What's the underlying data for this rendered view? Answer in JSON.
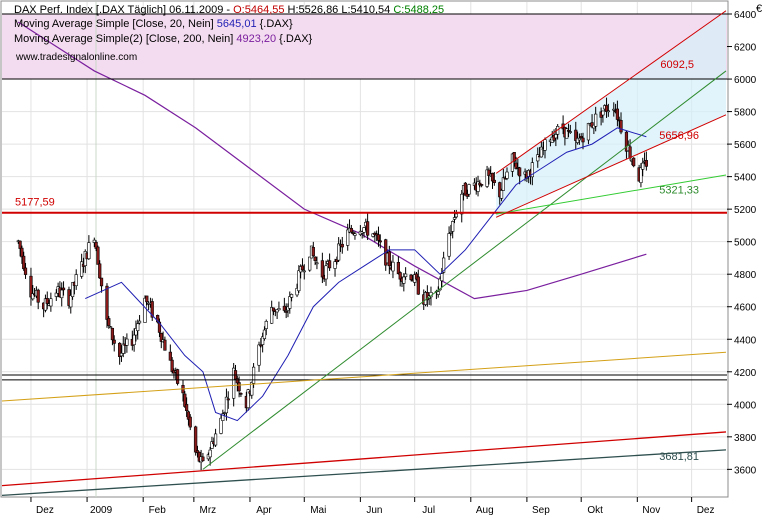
{
  "header": {
    "line1": {
      "prefix": "DAX Perf. Index [.DAX Täglich] 06.11.2009 - ",
      "open": "O:5464,55",
      "hl": " H:5526,86 L:5410,54 ",
      "close": "C:5488,25"
    },
    "line2": {
      "prefix": "Moving Average Simple [Close, 20, Nein] ",
      "value": "5645,01",
      "suffix": " {.DAX}"
    },
    "line3": {
      "prefix": "Moving Average Simple(2) [Close, 200, Nein] ",
      "value": "4923,20",
      "suffix": " {.DAX}"
    },
    "watermark": "www.tradesignalonline.com",
    "currency": "€"
  },
  "colors": {
    "up_candle": "#ffffff",
    "down_candle": "#8b1a1a",
    "ma20": "#1f1fb4",
    "ma200": "#7a1f9e",
    "open_label": "#c00000",
    "close_label": "#008000",
    "resistance_zone": "#f4dcf0",
    "channel_fill": "#d6f0fa"
  },
  "chart_data": {
    "type": "candlestick",
    "title": "DAX Perf. Index [.DAX Täglich]",
    "date": "06.11.2009",
    "ohlc_last": {
      "open": 5464.55,
      "high": 5526.86,
      "low": 5410.54,
      "close": 5488.25
    },
    "x_ticks": [
      "Dez",
      "2009",
      "Feb",
      "Mrz",
      "Apr",
      "Mai",
      "Jun",
      "Jul",
      "Aug",
      "Sep",
      "Okt",
      "Nov",
      "Dez"
    ],
    "y_ticks": [
      3600,
      3800,
      4000,
      4200,
      4400,
      4600,
      4800,
      5000,
      5200,
      5400,
      5600,
      5800,
      6000,
      6200,
      6400
    ],
    "ylim": [
      3430,
      6480
    ],
    "price_path": [
      [
        "2008-11-24",
        5000
      ],
      [
        "2008-12-01",
        4700
      ],
      [
        "2008-12-08",
        4600
      ],
      [
        "2008-12-15",
        4700
      ],
      [
        "2008-12-22",
        4650
      ],
      [
        "2009-01-05",
        5050
      ],
      [
        "2009-01-12",
        4500
      ],
      [
        "2009-01-19",
        4300
      ],
      [
        "2009-01-26",
        4400
      ],
      [
        "2009-02-02",
        4650
      ],
      [
        "2009-02-09",
        4500
      ],
      [
        "2009-02-16",
        4250
      ],
      [
        "2009-02-23",
        4050
      ],
      [
        "2009-03-02",
        3700
      ],
      [
        "2009-03-06",
        3620
      ],
      [
        "2009-03-16",
        3900
      ],
      [
        "2009-03-23",
        4200
      ],
      [
        "2009-03-30",
        4000
      ],
      [
        "2009-04-06",
        4350
      ],
      [
        "2009-04-13",
        4600
      ],
      [
        "2009-04-20",
        4550
      ],
      [
        "2009-04-27",
        4750
      ],
      [
        "2009-05-04",
        4950
      ],
      [
        "2009-05-11",
        4800
      ],
      [
        "2009-05-18",
        4900
      ],
      [
        "2009-05-25",
        5050
      ],
      [
        "2009-06-01",
        5100
      ],
      [
        "2009-06-08",
        5050
      ],
      [
        "2009-06-15",
        4900
      ],
      [
        "2009-06-22",
        4800
      ],
      [
        "2009-06-29",
        4800
      ],
      [
        "2009-07-06",
        4650
      ],
      [
        "2009-07-13",
        4650
      ],
      [
        "2009-07-20",
        5050
      ],
      [
        "2009-07-27",
        5300
      ],
      [
        "2009-08-03",
        5350
      ],
      [
        "2009-08-10",
        5400
      ],
      [
        "2009-08-17",
        5300
      ],
      [
        "2009-08-24",
        5500
      ],
      [
        "2009-08-31",
        5400
      ],
      [
        "2009-09-07",
        5500
      ],
      [
        "2009-09-14",
        5650
      ],
      [
        "2009-09-21",
        5700
      ],
      [
        "2009-09-28",
        5600
      ],
      [
        "2009-10-05",
        5700
      ],
      [
        "2009-10-12",
        5800
      ],
      [
        "2009-10-19",
        5850
      ],
      [
        "2009-10-26",
        5600
      ],
      [
        "2009-11-02",
        5400
      ],
      [
        "2009-11-06",
        5488
      ]
    ],
    "ma20_path": [
      [
        "2008-12-31",
        4650
      ],
      [
        "2009-01-20",
        4750
      ],
      [
        "2009-02-10",
        4500
      ],
      [
        "2009-02-24",
        4300
      ],
      [
        "2009-03-06",
        4200
      ],
      [
        "2009-03-13",
        3950
      ],
      [
        "2009-03-25",
        3900
      ],
      [
        "2009-04-08",
        4050
      ],
      [
        "2009-04-22",
        4300
      ],
      [
        "2009-05-06",
        4600
      ],
      [
        "2009-05-20",
        4750
      ],
      [
        "2009-06-03",
        4850
      ],
      [
        "2009-06-17",
        4950
      ],
      [
        "2009-07-01",
        4950
      ],
      [
        "2009-07-15",
        4800
      ],
      [
        "2009-07-29",
        4950
      ],
      [
        "2009-08-12",
        5150
      ],
      [
        "2009-08-26",
        5350
      ],
      [
        "2009-09-09",
        5450
      ],
      [
        "2009-09-23",
        5550
      ],
      [
        "2009-10-07",
        5600
      ],
      [
        "2009-10-21",
        5700
      ],
      [
        "2009-11-06",
        5645.01
      ]
    ],
    "ma200_path": [
      [
        "2008-11-24",
        6350
      ],
      [
        "2008-12-15",
        6200
      ],
      [
        "2009-01-05",
        6050
      ],
      [
        "2009-02-02",
        5900
      ],
      [
        "2009-03-02",
        5700
      ],
      [
        "2009-04-01",
        5450
      ],
      [
        "2009-05-01",
        5200
      ],
      [
        "2009-06-01",
        5050
      ],
      [
        "2009-07-01",
        4850
      ],
      [
        "2009-08-03",
        4650
      ],
      [
        "2009-09-01",
        4700
      ],
      [
        "2009-10-01",
        4800
      ],
      [
        "2009-11-06",
        4923.2
      ]
    ],
    "levels": [
      {
        "name": "resistance_high",
        "value": 6400
      },
      {
        "name": "resistance_low",
        "value": 6000
      },
      {
        "name": "support",
        "value": 5177.59,
        "label": "5177,59"
      },
      {
        "name": "level_a",
        "value": 4180
      },
      {
        "name": "level_b",
        "value": 4150
      }
    ],
    "annotations": [
      {
        "label": "6092,5",
        "value": 6092.5
      },
      {
        "label": "5656,96",
        "value": 5656.96
      },
      {
        "label": "5321,33",
        "value": 5321.33
      },
      {
        "label": "3681,81",
        "value": 3681.81
      }
    ]
  }
}
